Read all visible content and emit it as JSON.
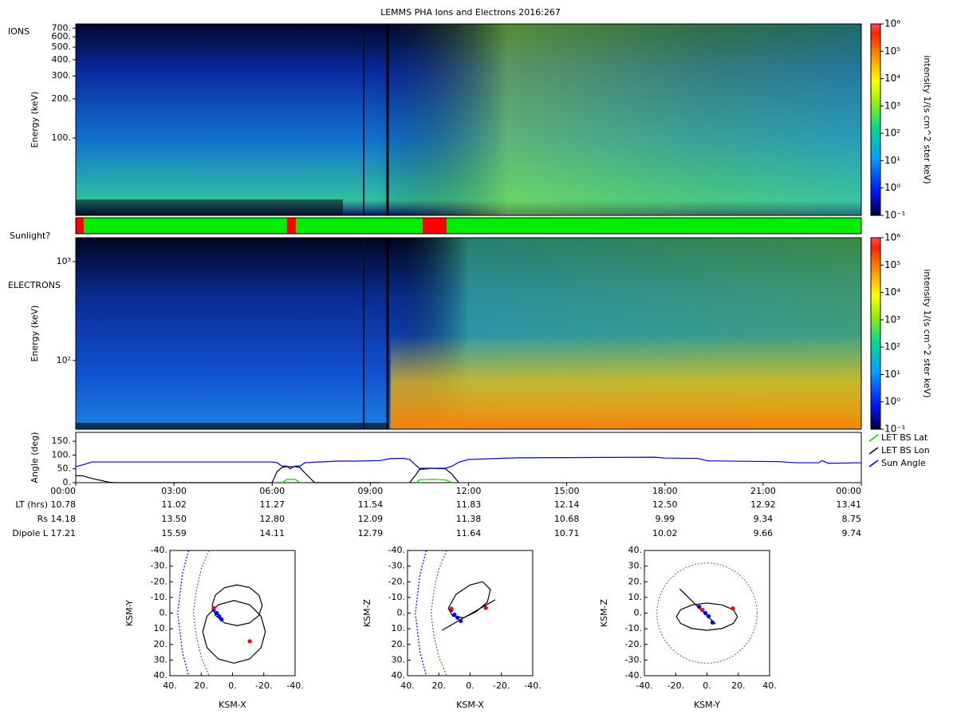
{
  "title": "LEMMS PHA Ions and Electrons  2016:267",
  "chart_data": [
    {
      "type": "spectrogram",
      "panel_label": "IONS",
      "y_label": "Energy (keV)",
      "log_y": true,
      "xlim": [
        0,
        24
      ],
      "ylim": [
        25.4,
        754
      ],
      "yticks": [
        {
          "value": 700,
          "label": "700."
        },
        {
          "value": 600,
          "label": "600."
        },
        {
          "value": 500,
          "label": "500."
        },
        {
          "value": 400,
          "label": "400."
        },
        {
          "value": 300,
          "label": "300."
        },
        {
          "value": 200,
          "label": "200."
        },
        {
          "value": 100,
          "label": "100."
        }
      ],
      "colorbar_label": "intensity 1/(s cm^2 ster keV)",
      "clim": [
        0.1,
        1000000
      ],
      "cticks": [
        {
          "value": 0.1,
          "label": "10⁻¹"
        },
        {
          "value": 1,
          "label": "10⁰"
        },
        {
          "value": 10,
          "label": "10¹"
        },
        {
          "value": 100,
          "label": "10²"
        },
        {
          "value": 1000,
          "label": "10³"
        },
        {
          "value": 10000,
          "label": "10⁴"
        },
        {
          "value": 100000,
          "label": "10⁵"
        },
        {
          "value": 1000000,
          "label": "10⁶"
        }
      ]
    },
    {
      "type": "state_bar",
      "label": "Sunlight?",
      "xlim": [
        0,
        24
      ],
      "color": "#00ee00",
      "intervals": [
        {
          "start": 0,
          "end": 0.24,
          "color": "#ff0000"
        },
        {
          "start": 6.45,
          "end": 6.72,
          "color": "#ff0000"
        },
        {
          "start": 10.6,
          "end": 11.33,
          "color": "#ff0000"
        }
      ]
    },
    {
      "type": "spectrogram",
      "panel_label": "ELECTRONS",
      "y_label": "Energy (keV)",
      "log_y": true,
      "xlim": [
        0,
        24
      ],
      "ylim": [
        20.2,
        1746
      ],
      "yticks": [
        {
          "value": 100,
          "label": "10²"
        },
        {
          "value": 1000,
          "label": "10³"
        }
      ],
      "colorbar_label": "intensity 1/(s cm^2 ster keV)",
      "clim": [
        0.1,
        1000000
      ],
      "cticks": [
        {
          "value": 0.1,
          "label": "10⁻¹"
        },
        {
          "value": 1,
          "label": "10⁰"
        },
        {
          "value": 10,
          "label": "10¹"
        },
        {
          "value": 100,
          "label": "10²"
        },
        {
          "value": 1000,
          "label": "10³"
        },
        {
          "value": 10000,
          "label": "10⁴"
        },
        {
          "value": 100000,
          "label": "10⁵"
        },
        {
          "value": 1000000,
          "label": "10⁶"
        }
      ]
    },
    {
      "type": "line",
      "y_label": "Angle (deg)",
      "xlim": [
        0,
        24
      ],
      "ylim": [
        0,
        182
      ],
      "legend": "right",
      "yticks": [
        {
          "value": 0,
          "label": "0."
        },
        {
          "value": 50,
          "label": "50."
        },
        {
          "value": 100,
          "label": "100."
        },
        {
          "value": 150,
          "label": "150."
        }
      ],
      "xticks": [
        {
          "value": 0,
          "label": "00:00"
        },
        {
          "value": 3,
          "label": "03:00"
        },
        {
          "value": 6,
          "label": "06:00"
        },
        {
          "value": 9,
          "label": "09:00"
        },
        {
          "value": 12,
          "label": "12:00"
        },
        {
          "value": 15,
          "label": "15:00"
        },
        {
          "value": 18,
          "label": "18:00"
        },
        {
          "value": 21,
          "label": "21:00"
        },
        {
          "value": 24,
          "label": "00:00"
        }
      ],
      "x": [
        0,
        0.2,
        0.5,
        1,
        1.2,
        6.0,
        6.15,
        6.3,
        6.45,
        6.55,
        6.7,
        6.85,
        7.0,
        7.3,
        8.0,
        8.5,
        9.3,
        9.6,
        10.0,
        10.2,
        10.4,
        10.5,
        10.9,
        11.3,
        11.5,
        11.7,
        12.0,
        12.5,
        13.5,
        17.7,
        18.0,
        19.0,
        19.3,
        21.5,
        22.0,
        22.7,
        22.8,
        23.0,
        24
      ],
      "series": [
        {
          "name": "LET BS Lat",
          "color": "#00dd00",
          "values": [
            null,
            null,
            null,
            null,
            null,
            null,
            null,
            0,
            12,
            12,
            12,
            0,
            null,
            null,
            null,
            null,
            null,
            null,
            null,
            null,
            0,
            10,
            12,
            10,
            0,
            null,
            null,
            null,
            null,
            null,
            null,
            null,
            null,
            null,
            null,
            null,
            null,
            null,
            null
          ]
        },
        {
          "name": "LET BS Lon",
          "color": "#000000",
          "values": [
            25,
            25,
            15,
            2,
            0,
            0,
            40,
            55,
            58,
            58,
            58,
            55,
            35,
            0,
            0,
            0,
            0,
            null,
            null,
            0,
            30,
            48,
            52,
            50,
            30,
            0,
            null,
            null,
            null,
            null,
            null,
            null,
            null,
            null,
            null,
            null,
            null,
            null,
            null
          ]
        },
        {
          "name": "Sun Angle",
          "color": "#0000cc",
          "values": [
            58,
            64,
            75,
            75,
            75,
            75,
            72,
            60,
            60,
            50,
            60,
            60,
            72,
            74,
            78,
            78,
            80,
            87,
            88,
            84,
            62,
            52,
            52,
            52,
            60,
            74,
            84,
            86,
            90,
            92,
            89,
            88,
            79,
            76,
            72,
            72,
            80,
            70,
            72
          ]
        }
      ]
    },
    {
      "type": "orbit",
      "x_label": "KSM-X",
      "y_label": "KSM-Y",
      "xlim": [
        40,
        -40
      ],
      "ylim": [
        40,
        -40
      ],
      "xticks": [
        {
          "value": 40,
          "label": "40."
        },
        {
          "value": 20,
          "label": "20."
        },
        {
          "value": 0,
          "label": "0."
        },
        {
          "value": -20,
          "label": "-20."
        },
        {
          "value": -40,
          "label": "-40."
        }
      ],
      "yticks": [
        {
          "value": -40,
          "label": "-40."
        },
        {
          "value": -30,
          "label": "-30."
        },
        {
          "value": -20,
          "label": "-20."
        },
        {
          "value": -10,
          "label": "-10."
        },
        {
          "value": 0,
          "label": "0."
        },
        {
          "value": 10,
          "label": "10."
        },
        {
          "value": 20,
          "label": "20."
        },
        {
          "value": 30,
          "label": "30."
        },
        {
          "value": 40,
          "label": "40."
        }
      ],
      "lines": [
        {
          "color": "#0000ff",
          "dashed": true,
          "x": [
            28,
            32,
            35,
            32,
            28
          ],
          "y": [
            -40,
            -25,
            0,
            25,
            40
          ]
        },
        {
          "color": "#a0522d",
          "dashed": true,
          "x": [
            15,
            20,
            23,
            25,
            23,
            20,
            15
          ],
          "y": [
            -40,
            -28,
            -15,
            0,
            15,
            28,
            40
          ]
        },
        {
          "color": "#000000",
          "dashed": false,
          "x": [
            19,
            16.3,
            9,
            -1,
            -11,
            -18.3,
            -21,
            -18.3,
            -11,
            -1,
            9,
            16.3,
            19
          ],
          "y": [
            12,
            22,
            29.3,
            32,
            29.3,
            22,
            12,
            2,
            -5.3,
            -8,
            -5.3,
            2,
            12
          ]
        },
        {
          "color": "#000000",
          "dashed": false,
          "x": [
            13,
            10.9,
            5,
            -3,
            -11,
            -16.9,
            -19,
            -16.9,
            -11,
            -3,
            5,
            10.9,
            13
          ],
          "y": [
            -5,
            1.5,
            6.3,
            8,
            6.3,
            1.5,
            -5,
            -11.5,
            -16.3,
            -18,
            -16.3,
            -11.5,
            -5
          ]
        }
      ],
      "markers": [
        {
          "color": "#0000ff",
          "x": [
            12,
            10,
            8.5,
            7
          ],
          "y": [
            -2,
            0,
            2,
            4
          ]
        },
        {
          "color": "#ff0000",
          "x": [
            12,
            -11
          ],
          "y": [
            -3.3,
            18
          ]
        }
      ]
    },
    {
      "type": "orbit",
      "x_label": "KSM-X",
      "y_label": "KSM-Z",
      "xlim": [
        40,
        -40
      ],
      "ylim": [
        40,
        -40
      ],
      "xticks": [
        {
          "value": 40,
          "label": "40."
        },
        {
          "value": 20,
          "label": "20."
        },
        {
          "value": 0,
          "label": "0."
        },
        {
          "value": -20,
          "label": "-20."
        },
        {
          "value": -40,
          "label": "-40."
        }
      ],
      "yticks": [
        {
          "value": -40,
          "label": "-40."
        },
        {
          "value": -30,
          "label": "-30."
        },
        {
          "value": -20,
          "label": "-20."
        },
        {
          "value": -10,
          "label": "-10."
        },
        {
          "value": 0,
          "label": "0."
        },
        {
          "value": 10,
          "label": "10."
        },
        {
          "value": 20,
          "label": "20."
        },
        {
          "value": 30,
          "label": "30."
        },
        {
          "value": 40,
          "label": "40."
        }
      ],
      "lines": [
        {
          "color": "#0000ff",
          "dashed": true,
          "x": [
            28,
            32,
            35,
            32,
            28
          ],
          "y": [
            -40,
            -25,
            0,
            25,
            40
          ]
        },
        {
          "color": "#a0522d",
          "dashed": true,
          "x": [
            15,
            20,
            23,
            25,
            23,
            20,
            15
          ],
          "y": [
            -40,
            -28,
            -15,
            0,
            15,
            28,
            40
          ]
        },
        {
          "color": "#000000",
          "dashed": false,
          "x": [
            18,
            -16
          ],
          "y": [
            11,
            -8.5
          ]
        },
        {
          "color": "#000000",
          "dashed": false,
          "x": [
            14,
            9,
            0,
            -8,
            -13,
            -11,
            -4,
            4,
            11,
            14
          ],
          "y": [
            -3,
            -12,
            -18,
            -20,
            -15,
            -7,
            -1,
            3,
            2,
            -3
          ]
        }
      ],
      "markers": [
        {
          "color": "#0000ff",
          "x": [
            12,
            10,
            8,
            6
          ],
          "y": [
            -2,
            1,
            3,
            5
          ]
        },
        {
          "color": "#ff0000",
          "x": [
            12,
            -10
          ],
          "y": [
            -2.8,
            -3.3
          ]
        }
      ]
    },
    {
      "type": "orbit",
      "x_label": "KSM-Y",
      "y_label": "KSM-Z",
      "xlim": [
        -40,
        40
      ],
      "ylim": [
        -40,
        40
      ],
      "xticks": [
        {
          "value": -40,
          "label": "-40."
        },
        {
          "value": -20,
          "label": "-20."
        },
        {
          "value": 0,
          "label": "0."
        },
        {
          "value": 20,
          "label": "20."
        },
        {
          "value": 40,
          "label": "40."
        }
      ],
      "yticks": [
        {
          "value": 40,
          "label": "40."
        },
        {
          "value": 30,
          "label": "30."
        },
        {
          "value": 20,
          "label": "20."
        },
        {
          "value": 10,
          "label": "10."
        },
        {
          "value": 0,
          "label": "0."
        },
        {
          "value": -10,
          "label": "-10."
        },
        {
          "value": -20,
          "label": "-20."
        },
        {
          "value": -30,
          "label": "-30."
        },
        {
          "value": -40,
          "label": "-40."
        }
      ],
      "circle": {
        "cx": 0,
        "cy": 0,
        "r": 32,
        "color": "#a0522d"
      },
      "lines": [
        {
          "color": "#000000",
          "dashed": false,
          "x": [
            19.5,
            16.9,
            9.75,
            0,
            -9.75,
            -16.9,
            -19.5,
            -16.9,
            -9.75,
            0,
            9.75,
            16.9,
            19.5
          ],
          "y": [
            -2.3,
            2.1,
            5.2,
            6.4,
            5.2,
            2.1,
            -2.3,
            -6.6,
            -9.8,
            -11,
            -9.8,
            -6.6,
            -2.3
          ]
        },
        {
          "color": "#000000",
          "dashed": false,
          "x": [
            -17.5,
            5.5
          ],
          "y": [
            15.5,
            -7
          ]
        }
      ],
      "markers": [
        {
          "color": "#0000ff",
          "x": [
            -5,
            -3,
            -1,
            1,
            3.5
          ],
          "y": [
            4,
            2,
            0,
            -2,
            -6
          ]
        },
        {
          "color": "#ff0000",
          "x": [
            -3,
            16.5
          ],
          "y": [
            2,
            3
          ]
        }
      ]
    }
  ],
  "ephemeris": {
    "rows": [
      {
        "label": "LT (hrs)",
        "values": [
          "10.78",
          "11.02",
          "11.27",
          "11.54",
          "11.83",
          "12.14",
          "12.50",
          "12.92",
          "13.41"
        ]
      },
      {
        "label": "Rs",
        "values": [
          "14.18",
          "13.50",
          "12.80",
          "12.09",
          "11.38",
          "10.68",
          "9.99",
          "9.34",
          "8.75"
        ]
      },
      {
        "label": "Dipole L",
        "values": [
          "17.21",
          "15.59",
          "14.11",
          "12.79",
          "11.64",
          "10.71",
          "10.02",
          "9.66",
          "9.74"
        ]
      }
    ]
  }
}
